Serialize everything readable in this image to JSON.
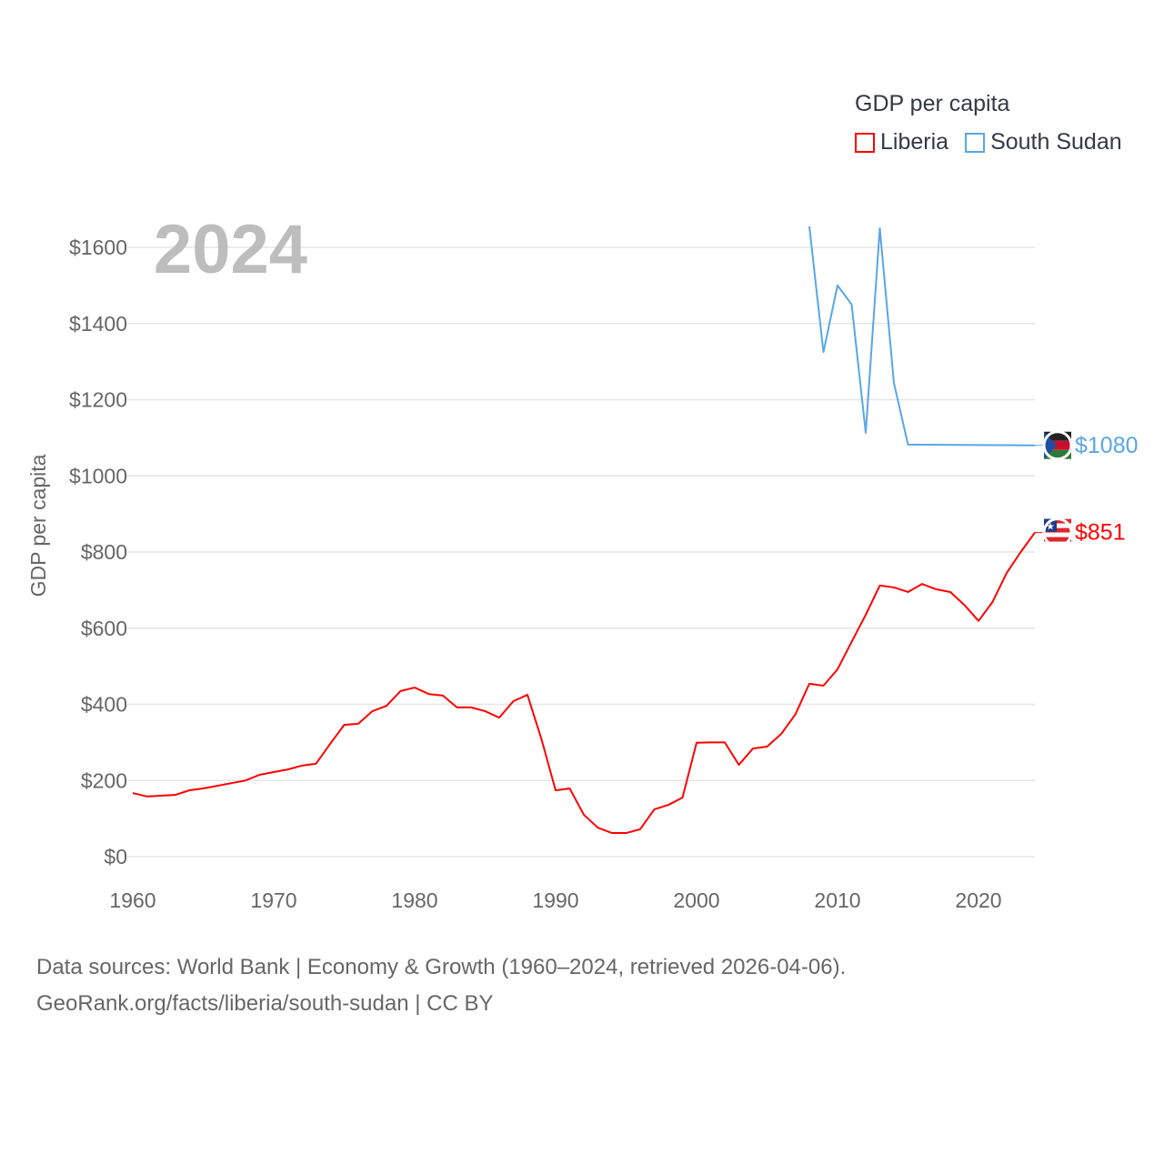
{
  "chart_data": {
    "type": "line",
    "title": "GDP per capita",
    "year_label": "2024",
    "xlabel": "",
    "ylabel": "GDP per capita",
    "xlim": [
      1960,
      2024
    ],
    "ylim": [
      0,
      1700
    ],
    "x_ticks": [
      1960,
      1970,
      1980,
      1990,
      2000,
      2010,
      2020
    ],
    "y_ticks": [
      0,
      200,
      400,
      600,
      800,
      1000,
      1200,
      1400,
      1600
    ],
    "y_tick_labels": [
      "$0",
      "$200",
      "$400",
      "$600",
      "$800",
      "$1000",
      "$1200",
      "$1400",
      "$1600"
    ],
    "grid": true,
    "legend_position": "top-right",
    "series": [
      {
        "name": "Liberia",
        "color": "#ff0000",
        "end_label": "$851",
        "x": [
          1960,
          1961,
          1962,
          1963,
          1964,
          1965,
          1966,
          1967,
          1968,
          1969,
          1970,
          1971,
          1972,
          1973,
          1974,
          1975,
          1976,
          1977,
          1978,
          1979,
          1980,
          1981,
          1982,
          1983,
          1984,
          1985,
          1986,
          1987,
          1988,
          1989,
          1990,
          1991,
          1992,
          1993,
          1994,
          1995,
          1996,
          1997,
          1998,
          1999,
          2000,
          2001,
          2002,
          2003,
          2004,
          2005,
          2006,
          2007,
          2008,
          2009,
          2010,
          2011,
          2012,
          2013,
          2014,
          2015,
          2016,
          2017,
          2018,
          2019,
          2020,
          2021,
          2022,
          2023,
          2024
        ],
        "values": [
          167,
          158,
          160,
          162,
          174,
          179,
          186,
          193,
          200,
          215,
          222,
          229,
          239,
          244,
          296,
          346,
          349,
          382,
          396,
          435,
          444,
          427,
          423,
          392,
          392,
          382,
          365,
          408,
          425,
          308,
          174,
          179,
          110,
          76,
          62,
          62,
          72,
          124,
          136,
          155,
          299,
          300,
          300,
          241,
          284,
          289,
          322,
          373,
          454,
          449,
          492,
          564,
          635,
          712,
          707,
          695,
          716,
          702,
          695,
          661,
          619,
          669,
          745,
          800,
          851
        ]
      },
      {
        "name": "South Sudan",
        "color": "#5aa5e8",
        "end_label": "$1080",
        "x": [
          2008,
          2009,
          2010,
          2011,
          2012,
          2013,
          2014,
          2015,
          2024
        ],
        "values": [
          1655,
          1325,
          1500,
          1450,
          1113,
          1650,
          1244,
          1082,
          1080
        ]
      }
    ]
  },
  "source": {
    "line1": "Data sources: World Bank | Economy & Growth (1960–2024, retrieved 2026-04-06).",
    "line2": "GeoRank.org/facts/liberia/south-sudan | CC BY"
  }
}
